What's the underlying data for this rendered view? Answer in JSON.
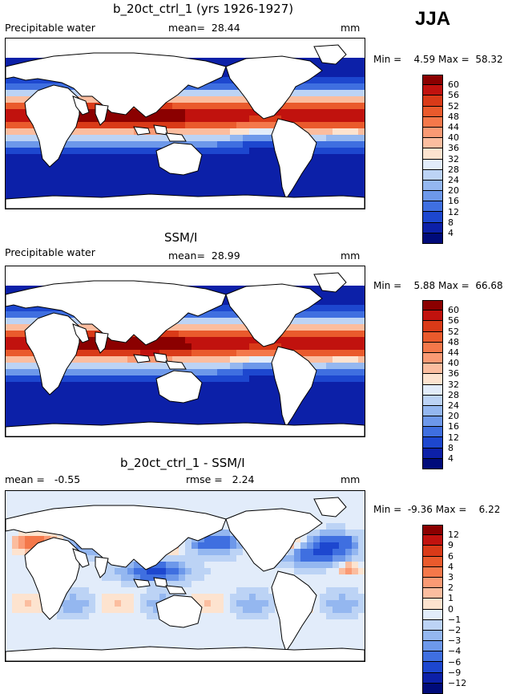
{
  "season": "JJA",
  "panels": [
    {
      "title": "b_20ct_ctrl_1 (yrs 1926-1927)",
      "left_label": "Precipitable water",
      "mid_label": "mean=",
      "mid_value": "28.44",
      "units": "mm",
      "min_label": "Min =",
      "min_value": "4.59",
      "max_label": "Max =",
      "max_value": "58.32",
      "colorbar_labels": [
        "60",
        "56",
        "52",
        "48",
        "44",
        "40",
        "36",
        "32",
        "28",
        "24",
        "20",
        "16",
        "12",
        "8",
        "4"
      ],
      "colorbar_colors": [
        "#8b0000",
        "#c1120e",
        "#d93a18",
        "#ea5a2c",
        "#f4784a",
        "#fa9a74",
        "#fbbd9f",
        "#fde3cf",
        "#e2ecfa",
        "#bcd3f5",
        "#94b7f0",
        "#6d98ea",
        "#3f6fe0",
        "#1d47cf",
        "#0c20a8",
        "#000b7a"
      ],
      "field": "warm"
    },
    {
      "title": "SSM/I",
      "left_label": "Precipitable water",
      "mid_label": "mean=",
      "mid_value": "28.99",
      "units": "mm",
      "min_label": "Min =",
      "min_value": "5.88",
      "max_label": "Max =",
      "max_value": "66.68",
      "colorbar_labels": [
        "60",
        "56",
        "52",
        "48",
        "44",
        "40",
        "36",
        "32",
        "28",
        "24",
        "20",
        "16",
        "12",
        "8",
        "4"
      ],
      "colorbar_colors": [
        "#8b0000",
        "#c1120e",
        "#d93a18",
        "#ea5a2c",
        "#f4784a",
        "#fa9a74",
        "#fbbd9f",
        "#fde3cf",
        "#e2ecfa",
        "#bcd3f5",
        "#94b7f0",
        "#6d98ea",
        "#3f6fe0",
        "#1d47cf",
        "#0c20a8",
        "#000b7a"
      ],
      "field": "warm_obs"
    },
    {
      "title": "b_20ct_ctrl_1 - SSM/I",
      "left_label": "mean =",
      "left_value": "-0.55",
      "mid_label": "rmse =",
      "mid_value": "2.24",
      "units": "mm",
      "min_label": "Min =",
      "min_value": "-9.36",
      "max_label": "Max =",
      "max_value": "6.22",
      "colorbar_labels": [
        "12",
        "9",
        "6",
        "4",
        "3",
        "2",
        "1",
        "0",
        "−1",
        "−2",
        "−3",
        "−4",
        "−6",
        "−9",
        "−12"
      ],
      "colorbar_colors": [
        "#8b0000",
        "#c1120e",
        "#d93a18",
        "#ea5a2c",
        "#f4784a",
        "#fa9a74",
        "#fbbd9f",
        "#fde3cf",
        "#e2ecfa",
        "#bcd3f5",
        "#94b7f0",
        "#6d98ea",
        "#3f6fe0",
        "#1d47cf",
        "#0c20a8",
        "#000b7a"
      ],
      "field": "diff"
    }
  ],
  "chart_data": [
    {
      "type": "heatmap",
      "title": "b_20ct_ctrl_1 (yrs 1926-1927)",
      "variable": "Precipitable water",
      "units": "mm",
      "mean": 28.44,
      "min": 4.59,
      "max": 58.32,
      "contour_levels": [
        4,
        8,
        12,
        16,
        20,
        24,
        28,
        32,
        36,
        40,
        44,
        48,
        52,
        56,
        60
      ]
    },
    {
      "type": "heatmap",
      "title": "SSM/I",
      "variable": "Precipitable water",
      "units": "mm",
      "mean": 28.99,
      "min": 5.88,
      "max": 66.68,
      "contour_levels": [
        4,
        8,
        12,
        16,
        20,
        24,
        28,
        32,
        36,
        40,
        44,
        48,
        52,
        56,
        60
      ]
    },
    {
      "type": "heatmap",
      "title": "b_20ct_ctrl_1 - SSM/I",
      "units": "mm",
      "mean": -0.55,
      "rmse": 2.24,
      "min": -9.36,
      "max": 6.22,
      "contour_levels": [
        -12,
        -9,
        -6,
        -4,
        -3,
        -2,
        -1,
        0,
        1,
        2,
        3,
        4,
        6,
        9,
        12
      ]
    }
  ]
}
